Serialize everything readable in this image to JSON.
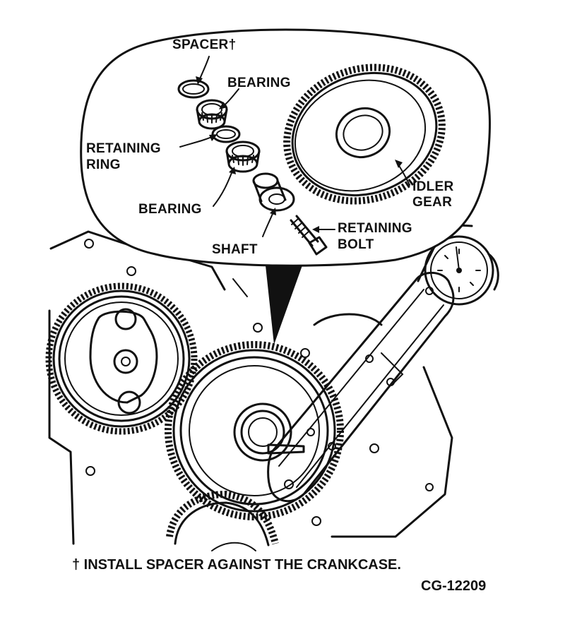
{
  "labels": {
    "spacer": "SPACER†",
    "bearing_top": "BEARING",
    "retaining_ring_line1": "RETAINING",
    "retaining_ring_line2": "RING",
    "bearing_bottom": "BEARING",
    "shaft": "SHAFT",
    "idler_line1": "IDLER",
    "idler_line2": "GEAR",
    "bolt_line1": "RETAINING",
    "bolt_line2": "BOLT"
  },
  "footer": {
    "note": "† INSTALL SPACER AGAINST THE CRANKCASE.",
    "code": "CG-12209"
  }
}
